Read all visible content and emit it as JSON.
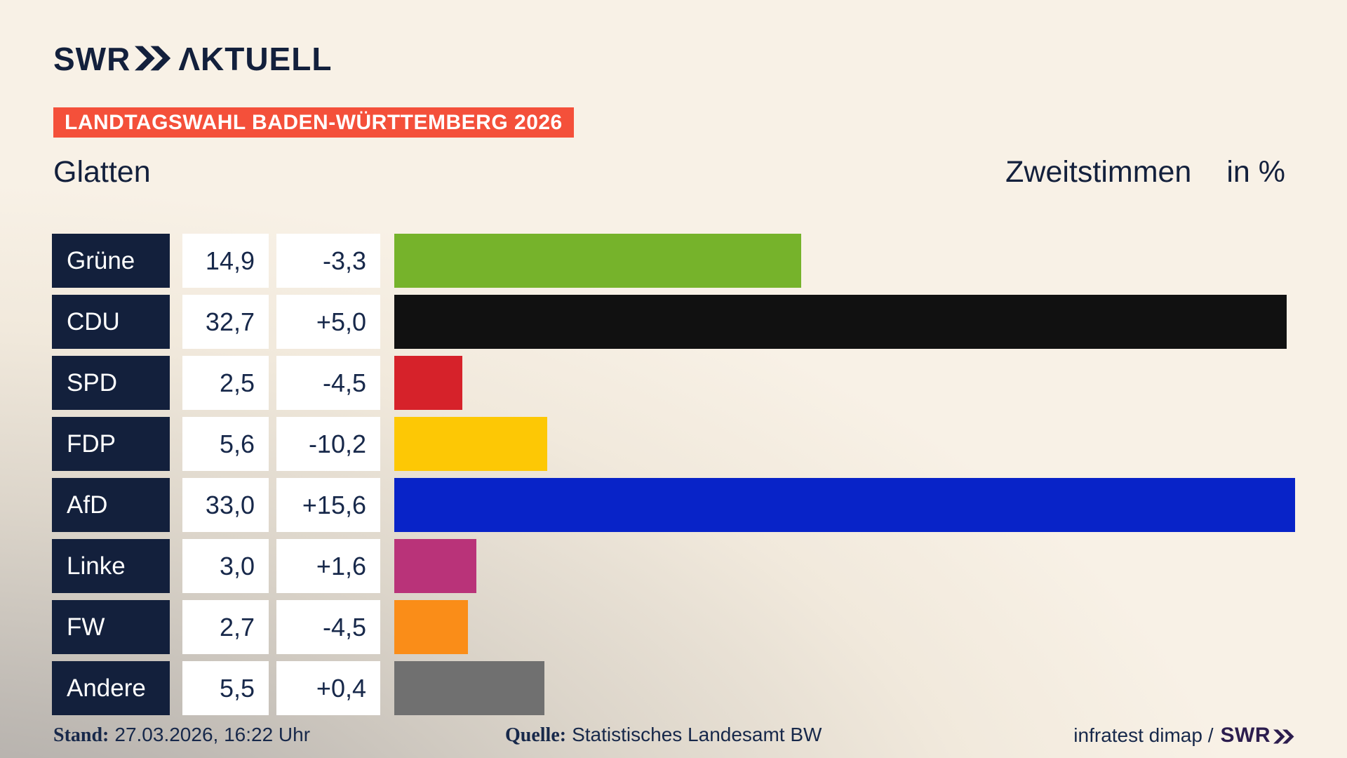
{
  "brand": {
    "name": "SWR",
    "suffix": "ΛKTUELL"
  },
  "header": {
    "badge": "LANDTAGSWAHL BADEN-WÜRTTEMBERG 2026",
    "title": "Glatten",
    "vote_type": "Zweitstimmen",
    "unit": "in %"
  },
  "chart_data": {
    "type": "bar",
    "orientation": "horizontal",
    "title": "Glatten – Zweitstimmen in %",
    "categories": [
      "Grüne",
      "CDU",
      "SPD",
      "FDP",
      "AfD",
      "Linke",
      "FW",
      "Andere"
    ],
    "values": [
      14.9,
      32.7,
      2.5,
      5.6,
      33.0,
      3.0,
      2.7,
      5.5
    ],
    "changes": [
      -3.3,
      5.0,
      -4.5,
      -10.2,
      15.6,
      1.6,
      -4.5,
      0.4
    ],
    "xlim": [
      0,
      33.5
    ],
    "grid": false,
    "legend": false,
    "bar_colors": [
      "#76b32b",
      "#111111",
      "#d6222a",
      "#fdc805",
      "#0823c8",
      "#b93379",
      "#fa8d18",
      "#707070"
    ]
  },
  "parties": [
    {
      "name": "Grüne",
      "value": "14,9",
      "change": "-3,3",
      "value_num": 14.9,
      "color": "#76b32b"
    },
    {
      "name": "CDU",
      "value": "32,7",
      "change": "+5,0",
      "value_num": 32.7,
      "color": "#111111"
    },
    {
      "name": "SPD",
      "value": "2,5",
      "change": "-4,5",
      "value_num": 2.5,
      "color": "#d6222a"
    },
    {
      "name": "FDP",
      "value": "5,6",
      "change": "-10,2",
      "value_num": 5.6,
      "color": "#fdc805"
    },
    {
      "name": "AfD",
      "value": "33,0",
      "change": "+15,6",
      "value_num": 33.0,
      "color": "#0823c8"
    },
    {
      "name": "Linke",
      "value": "3,0",
      "change": "+1,6",
      "value_num": 3.0,
      "color": "#b93379"
    },
    {
      "name": "FW",
      "value": "2,7",
      "change": "-4,5",
      "value_num": 2.7,
      "color": "#fa8d18"
    },
    {
      "name": "Andere",
      "value": "5,5",
      "change": "+0,4",
      "value_num": 5.5,
      "color": "#707070"
    }
  ],
  "footer": {
    "stand_label": "Stand:",
    "stand_value": "27.03.2026, 16:22 Uhr",
    "quelle_label": "Quelle:",
    "quelle_value": "Statistisches Landesamt BW",
    "credit": "infratest dimap /",
    "credit_brand": "SWR"
  },
  "colors": {
    "navy": "#13203c",
    "badge_red": "#f4503a",
    "text": "#17284a",
    "footer_brand": "#2c1d4e"
  }
}
